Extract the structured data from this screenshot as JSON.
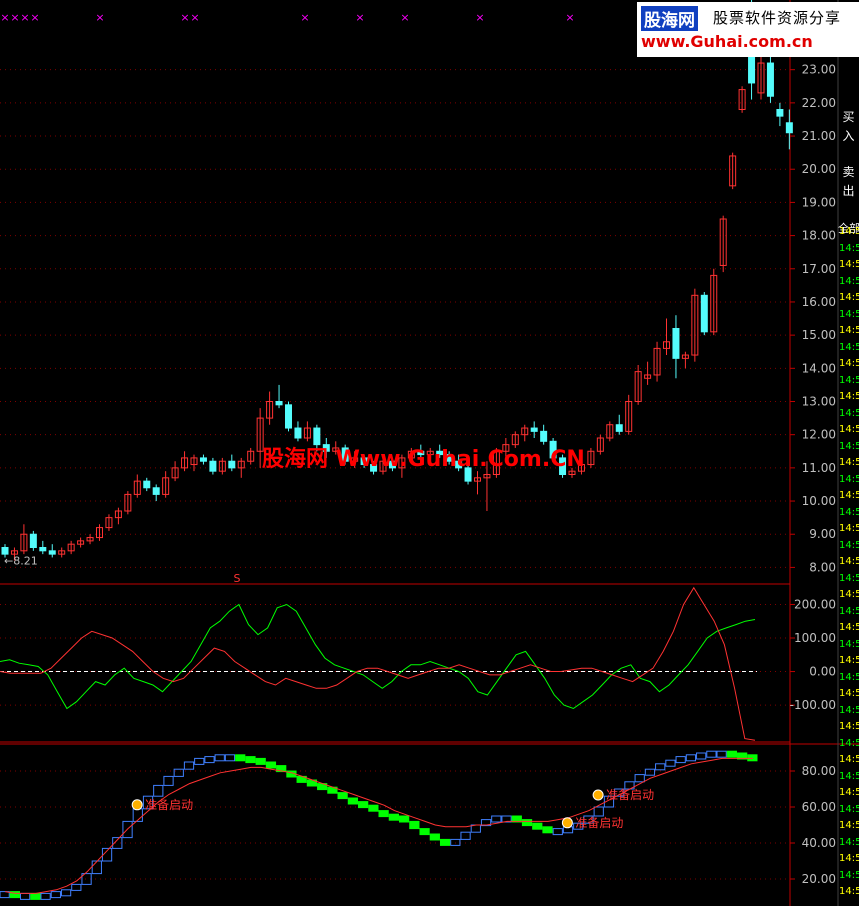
{
  "colors": {
    "up": "#ff3232",
    "down": "#54fcfc",
    "grid": "#800000",
    "axis": "#c00000",
    "text": "#c0c0c0",
    "green": "#00ff00",
    "blue": "#4080ff",
    "magenta": "#ff00ff",
    "yellow": "#ffff00",
    "white": "#ffffff"
  },
  "watermark_center": "股海网 Www.Guhai.Com.CN",
  "logo": {
    "name": "股海网",
    "tagline": "股票软件资源分享",
    "url": "www.Guhai.com.cn"
  },
  "side_buttons": [
    "买",
    "入",
    "卖",
    "出",
    "全部"
  ],
  "side_list": [
    "14:5",
    "14:5",
    "14:5",
    "14:5",
    "14:5",
    "14:5",
    "14:5",
    "14:5",
    "14:5",
    "14:5",
    "14:5",
    "14:5",
    "14:5",
    "14:5",
    "14:5",
    "14:5",
    "14:5",
    "14:5",
    "14:5",
    "14:5",
    "14:5",
    "14:5",
    "14:5",
    "14:5",
    "14:5",
    "14:5",
    "14:5",
    "14:5",
    "14:5",
    "14:5",
    "14:5",
    "14:5",
    "14:5",
    "14:5",
    "14:5",
    "14:5",
    "14:5",
    "14:5",
    "14:5",
    "14:5",
    "14:5"
  ],
  "chart_data": [
    {
      "type": "candlestick",
      "low_label": "8.21",
      "marker": "S",
      "yticks": [
        8.0,
        9.0,
        10.0,
        11.0,
        12.0,
        13.0,
        14.0,
        15.0,
        16.0,
        17.0,
        18.0,
        19.0,
        20.0,
        21.0,
        22.0,
        23.0
      ],
      "ylim": [
        7.5,
        25.1
      ],
      "candles": [
        {
          "o": 8.6,
          "h": 8.7,
          "l": 8.3,
          "c": 8.4
        },
        {
          "o": 8.4,
          "h": 8.6,
          "l": 8.21,
          "c": 8.5
        },
        {
          "o": 8.5,
          "h": 9.3,
          "l": 8.4,
          "c": 9.0
        },
        {
          "o": 9.0,
          "h": 9.1,
          "l": 8.5,
          "c": 8.6
        },
        {
          "o": 8.6,
          "h": 8.8,
          "l": 8.4,
          "c": 8.5
        },
        {
          "o": 8.5,
          "h": 8.7,
          "l": 8.3,
          "c": 8.4
        },
        {
          "o": 8.4,
          "h": 8.6,
          "l": 8.3,
          "c": 8.5
        },
        {
          "o": 8.5,
          "h": 8.8,
          "l": 8.4,
          "c": 8.7
        },
        {
          "o": 8.7,
          "h": 8.9,
          "l": 8.6,
          "c": 8.8
        },
        {
          "o": 8.8,
          "h": 9.0,
          "l": 8.7,
          "c": 8.9
        },
        {
          "o": 8.9,
          "h": 9.3,
          "l": 8.8,
          "c": 9.2
        },
        {
          "o": 9.2,
          "h": 9.6,
          "l": 9.1,
          "c": 9.5
        },
        {
          "o": 9.5,
          "h": 9.8,
          "l": 9.3,
          "c": 9.7
        },
        {
          "o": 9.7,
          "h": 10.3,
          "l": 9.6,
          "c": 10.2
        },
        {
          "o": 10.2,
          "h": 10.8,
          "l": 10.1,
          "c": 10.6
        },
        {
          "o": 10.6,
          "h": 10.7,
          "l": 10.3,
          "c": 10.4
        },
        {
          "o": 10.4,
          "h": 10.5,
          "l": 10.0,
          "c": 10.2
        },
        {
          "o": 10.2,
          "h": 10.9,
          "l": 10.1,
          "c": 10.7
        },
        {
          "o": 10.7,
          "h": 11.2,
          "l": 10.6,
          "c": 11.0
        },
        {
          "o": 11.0,
          "h": 11.5,
          "l": 10.9,
          "c": 11.3
        },
        {
          "o": 11.1,
          "h": 11.4,
          "l": 10.9,
          "c": 11.3
        },
        {
          "o": 11.3,
          "h": 11.4,
          "l": 11.1,
          "c": 11.2
        },
        {
          "o": 11.2,
          "h": 11.3,
          "l": 10.8,
          "c": 10.9
        },
        {
          "o": 10.9,
          "h": 11.3,
          "l": 10.8,
          "c": 11.2
        },
        {
          "o": 11.2,
          "h": 11.4,
          "l": 10.9,
          "c": 11.0
        },
        {
          "o": 11.0,
          "h": 11.3,
          "l": 10.7,
          "c": 11.2
        },
        {
          "o": 11.2,
          "h": 11.6,
          "l": 11.1,
          "c": 11.5
        },
        {
          "o": 11.5,
          "h": 12.8,
          "l": 11.0,
          "c": 12.5
        },
        {
          "o": 12.5,
          "h": 13.3,
          "l": 12.3,
          "c": 13.0
        },
        {
          "o": 13.0,
          "h": 13.5,
          "l": 12.8,
          "c": 12.9
        },
        {
          "o": 12.9,
          "h": 13.0,
          "l": 12.1,
          "c": 12.2
        },
        {
          "o": 12.2,
          "h": 12.4,
          "l": 11.8,
          "c": 11.9
        },
        {
          "o": 11.9,
          "h": 12.4,
          "l": 11.8,
          "c": 12.2
        },
        {
          "o": 12.2,
          "h": 12.3,
          "l": 11.5,
          "c": 11.7
        },
        {
          "o": 11.7,
          "h": 11.9,
          "l": 11.3,
          "c": 11.5
        },
        {
          "o": 11.5,
          "h": 11.8,
          "l": 11.4,
          "c": 11.6
        },
        {
          "o": 11.6,
          "h": 11.7,
          "l": 11.1,
          "c": 11.2
        },
        {
          "o": 11.2,
          "h": 11.5,
          "l": 11.0,
          "c": 11.3
        },
        {
          "o": 11.3,
          "h": 11.4,
          "l": 11.0,
          "c": 11.1
        },
        {
          "o": 11.1,
          "h": 11.2,
          "l": 10.8,
          "c": 10.9
        },
        {
          "o": 10.9,
          "h": 11.3,
          "l": 10.8,
          "c": 11.2
        },
        {
          "o": 11.2,
          "h": 11.3,
          "l": 10.9,
          "c": 11.0
        },
        {
          "o": 11.0,
          "h": 11.4,
          "l": 10.7,
          "c": 11.3
        },
        {
          "o": 11.3,
          "h": 11.6,
          "l": 11.2,
          "c": 11.5
        },
        {
          "o": 11.5,
          "h": 11.7,
          "l": 11.3,
          "c": 11.4
        },
        {
          "o": 11.4,
          "h": 11.6,
          "l": 11.2,
          "c": 11.5
        },
        {
          "o": 11.5,
          "h": 11.7,
          "l": 11.3,
          "c": 11.4
        },
        {
          "o": 11.4,
          "h": 11.5,
          "l": 11.1,
          "c": 11.2
        },
        {
          "o": 11.2,
          "h": 11.4,
          "l": 10.9,
          "c": 11.0
        },
        {
          "o": 11.0,
          "h": 11.3,
          "l": 10.5,
          "c": 10.6
        },
        {
          "o": 10.6,
          "h": 10.9,
          "l": 10.2,
          "c": 10.7
        },
        {
          "o": 10.7,
          "h": 11.2,
          "l": 9.7,
          "c": 10.8
        },
        {
          "o": 10.8,
          "h": 11.6,
          "l": 10.7,
          "c": 11.5
        },
        {
          "o": 11.5,
          "h": 11.9,
          "l": 11.3,
          "c": 11.7
        },
        {
          "o": 11.7,
          "h": 12.1,
          "l": 11.6,
          "c": 12.0
        },
        {
          "o": 12.0,
          "h": 12.3,
          "l": 11.8,
          "c": 12.2
        },
        {
          "o": 12.2,
          "h": 12.4,
          "l": 11.9,
          "c": 12.1
        },
        {
          "o": 12.1,
          "h": 12.3,
          "l": 11.7,
          "c": 11.8
        },
        {
          "o": 11.8,
          "h": 11.9,
          "l": 11.2,
          "c": 11.3
        },
        {
          "o": 11.3,
          "h": 11.4,
          "l": 10.7,
          "c": 10.8
        },
        {
          "o": 10.8,
          "h": 11.0,
          "l": 10.7,
          "c": 10.9
        },
        {
          "o": 10.9,
          "h": 11.2,
          "l": 10.8,
          "c": 11.1
        },
        {
          "o": 11.1,
          "h": 11.6,
          "l": 11.0,
          "c": 11.5
        },
        {
          "o": 11.5,
          "h": 12.0,
          "l": 11.4,
          "c": 11.9
        },
        {
          "o": 11.9,
          "h": 12.4,
          "l": 11.8,
          "c": 12.3
        },
        {
          "o": 12.3,
          "h": 12.6,
          "l": 12.0,
          "c": 12.1
        },
        {
          "o": 12.1,
          "h": 13.2,
          "l": 12.0,
          "c": 13.0
        },
        {
          "o": 13.0,
          "h": 14.1,
          "l": 12.9,
          "c": 13.9
        },
        {
          "o": 13.7,
          "h": 14.2,
          "l": 13.5,
          "c": 13.8
        },
        {
          "o": 13.8,
          "h": 14.8,
          "l": 13.6,
          "c": 14.6
        },
        {
          "o": 14.6,
          "h": 15.5,
          "l": 14.4,
          "c": 14.8
        },
        {
          "o": 15.2,
          "h": 15.6,
          "l": 13.7,
          "c": 14.3
        },
        {
          "o": 14.3,
          "h": 14.5,
          "l": 14.0,
          "c": 14.4
        },
        {
          "o": 14.4,
          "h": 16.4,
          "l": 14.2,
          "c": 16.2
        },
        {
          "o": 16.2,
          "h": 16.3,
          "l": 15.0,
          "c": 15.1
        },
        {
          "o": 15.1,
          "h": 17.0,
          "l": 15.0,
          "c": 16.8
        },
        {
          "o": 17.1,
          "h": 18.6,
          "l": 16.9,
          "c": 18.5
        },
        {
          "o": 19.5,
          "h": 20.5,
          "l": 19.4,
          "c": 20.4
        },
        {
          "o": 21.8,
          "h": 22.5,
          "l": 21.7,
          "c": 22.4
        },
        {
          "o": 24.8,
          "h": 25.1,
          "l": 22.1,
          "c": 22.6
        },
        {
          "o": 22.3,
          "h": 23.6,
          "l": 22.1,
          "c": 23.2
        },
        {
          "o": 23.2,
          "h": 24.0,
          "l": 22.0,
          "c": 22.2
        },
        {
          "o": 21.8,
          "h": 22.0,
          "l": 21.3,
          "c": 21.6
        },
        {
          "o": 21.4,
          "h": 21.8,
          "l": 20.6,
          "c": 21.1
        }
      ],
      "top_marks": [
        5,
        15,
        25,
        35,
        100,
        185,
        195,
        305,
        360,
        405,
        480,
        570
      ]
    },
    {
      "type": "line",
      "yticks": [
        200.0,
        100.0,
        0.0,
        -100.0
      ],
      "ylim": [
        -210,
        255
      ],
      "series": [
        {
          "color": "#00ff00",
          "values": [
            30,
            35,
            25,
            20,
            15,
            -10,
            -60,
            -110,
            -90,
            -60,
            -30,
            -40,
            -10,
            10,
            -20,
            -30,
            -40,
            -60,
            -30,
            0,
            30,
            80,
            130,
            150,
            180,
            200,
            140,
            110,
            130,
            190,
            200,
            180,
            130,
            80,
            40,
            20,
            10,
            0,
            -10,
            -30,
            -50,
            -30,
            0,
            20,
            20,
            30,
            20,
            10,
            0,
            -20,
            -60,
            -70,
            -30,
            10,
            50,
            60,
            20,
            -20,
            -70,
            -100,
            -110,
            -90,
            -70,
            -40,
            -10,
            10,
            20,
            -20,
            -30,
            -60,
            -40,
            -10,
            20,
            60,
            100,
            120,
            130,
            140,
            150,
            155
          ]
        },
        {
          "color": "#ff3232",
          "values": [
            0,
            -5,
            -5,
            -5,
            -5,
            10,
            40,
            70,
            100,
            120,
            110,
            100,
            80,
            60,
            30,
            0,
            -20,
            -30,
            -20,
            10,
            40,
            70,
            60,
            30,
            10,
            -10,
            -30,
            -40,
            -20,
            -30,
            -40,
            -50,
            -50,
            -40,
            -20,
            0,
            10,
            10,
            0,
            -10,
            -20,
            -10,
            0,
            10,
            10,
            20,
            10,
            0,
            -10,
            -10,
            0,
            10,
            20,
            10,
            0,
            0,
            5,
            10,
            10,
            0,
            -10,
            -20,
            -30,
            -10,
            10,
            60,
            120,
            200,
            250,
            200,
            150,
            80,
            -50,
            -200,
            -205
          ]
        }
      ]
    },
    {
      "type": "bar",
      "signal_label": "准备启动",
      "yticks": [
        80.0,
        60.0,
        40.0,
        20.0
      ],
      "ylim": [
        5,
        95
      ],
      "bars": [
        13,
        12,
        12,
        11,
        12,
        13,
        14,
        17,
        23,
        30,
        37,
        43,
        52,
        59,
        66,
        72,
        77,
        81,
        85,
        87,
        88,
        89,
        89,
        88,
        87,
        85,
        83,
        80,
        77,
        75,
        73,
        71,
        68,
        65,
        63,
        61,
        58,
        56,
        55,
        52,
        48,
        45,
        42,
        40,
        42,
        46,
        50,
        53,
        55,
        55,
        53,
        51,
        49,
        48,
        48,
        49,
        51,
        55,
        60,
        66,
        70,
        74,
        78,
        81,
        84,
        86,
        88,
        89,
        90,
        91,
        91,
        90,
        89,
        88
      ],
      "red_line": [
        13,
        12,
        12,
        12,
        13,
        14,
        16,
        19,
        24,
        30,
        36,
        42,
        48,
        53,
        58,
        63,
        67,
        70,
        73,
        75,
        77,
        79,
        80,
        81,
        82,
        82,
        81,
        80,
        79,
        77,
        75,
        73,
        71,
        69,
        67,
        65,
        63,
        61,
        58,
        56,
        54,
        52,
        50,
        49,
        49,
        49,
        50,
        50,
        51,
        52,
        52,
        52,
        52,
        52,
        53,
        54,
        56,
        58,
        61,
        64,
        67,
        70,
        73,
        76,
        78,
        80,
        82,
        84,
        85,
        86,
        87,
        87,
        87,
        87
      ],
      "signals": [
        {
          "i": 13,
          "label": "准备启动"
        },
        {
          "i": 55,
          "label": "准备启动"
        },
        {
          "i": 58,
          "label": "准备启动"
        }
      ]
    }
  ]
}
